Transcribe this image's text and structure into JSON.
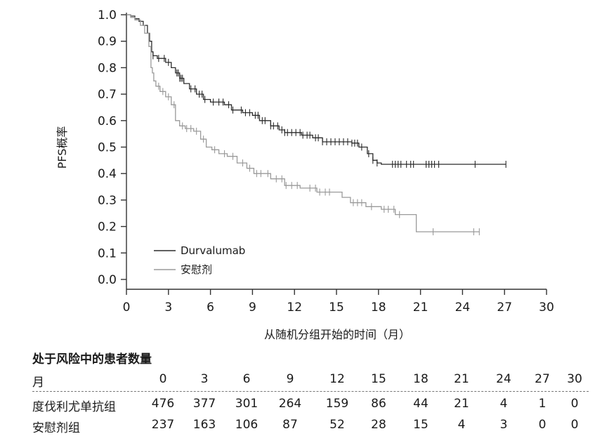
{
  "chart_data": {
    "type": "line",
    "subtype": "kaplan-meier",
    "title": "",
    "xlabel": "从随机分组开始的时间（月）",
    "ylabel": "PFS概率",
    "xlim": [
      0,
      30
    ],
    "ylim": [
      0,
      1.0
    ],
    "x_ticks": [
      "0",
      "3",
      "6",
      "9",
      "12",
      "15",
      "18",
      "21",
      "24",
      "27",
      "30"
    ],
    "y_ticks": [
      "0.0",
      "0.1",
      "0.2",
      "0.3",
      "0.4",
      "0.5",
      "0.6",
      "0.7",
      "0.8",
      "0.9",
      "1.0"
    ],
    "grid": false,
    "legend_position": "bottom-left",
    "series": [
      {
        "name": "Durvalumab",
        "color": "#2b2b2b",
        "x": [
          0,
          0.3,
          0.6,
          0.9,
          1.2,
          1.5,
          1.65,
          1.8,
          1.9,
          2.2,
          2.8,
          3.2,
          3.5,
          3.8,
          4.1,
          4.5,
          5.0,
          5.5,
          6.0,
          7.0,
          7.5,
          8.3,
          9.0,
          9.5,
          10.3,
          10.9,
          11.3,
          12.5,
          13.3,
          14.0,
          16.1,
          16.6,
          17.2,
          17.6,
          17.9,
          18.2,
          27.1
        ],
        "y": [
          1.0,
          0.995,
          0.985,
          0.975,
          0.96,
          0.93,
          0.9,
          0.86,
          0.845,
          0.835,
          0.82,
          0.8,
          0.78,
          0.76,
          0.74,
          0.72,
          0.7,
          0.68,
          0.67,
          0.66,
          0.64,
          0.63,
          0.62,
          0.6,
          0.58,
          0.565,
          0.555,
          0.545,
          0.535,
          0.52,
          0.515,
          0.5,
          0.475,
          0.45,
          0.44,
          0.435,
          0.435
        ],
        "censored_x": [
          1.9,
          2.3,
          2.7,
          3.0,
          3.6,
          3.7,
          3.8,
          3.9,
          4.0,
          4.6,
          4.9,
          5.2,
          5.4,
          5.6,
          6.2,
          6.6,
          6.9,
          7.3,
          7.6,
          8.2,
          8.5,
          8.8,
          9.2,
          9.4,
          9.7,
          9.9,
          10.3,
          10.5,
          10.8,
          11.1,
          11.3,
          11.5,
          11.8,
          12.1,
          12.4,
          12.6,
          12.9,
          13.1,
          13.5,
          13.7,
          14.0,
          14.3,
          14.6,
          14.9,
          15.2,
          15.5,
          15.8,
          16.1,
          16.3,
          16.5,
          16.8,
          17.3,
          17.6,
          17.9,
          19.0,
          19.2,
          19.4,
          19.6,
          20.0,
          20.3,
          20.5,
          21.4,
          21.6,
          21.8,
          22.0,
          22.3,
          24.9,
          27.1
        ]
      },
      {
        "name": "安慰剂",
        "color": "#9a9a9a",
        "x": [
          0,
          0.3,
          0.6,
          1.0,
          1.3,
          1.6,
          1.75,
          1.85,
          1.95,
          2.1,
          2.4,
          2.8,
          3.2,
          3.5,
          3.8,
          4.2,
          4.8,
          5.3,
          5.7,
          6.1,
          6.6,
          7.2,
          7.9,
          8.6,
          9.1,
          10.3,
          11.3,
          12.4,
          13.6,
          15.4,
          16.0,
          17.1,
          18.2,
          19.2,
          20.7,
          25.2
        ],
        "y": [
          1.0,
          0.99,
          0.98,
          0.96,
          0.93,
          0.88,
          0.8,
          0.78,
          0.75,
          0.73,
          0.71,
          0.69,
          0.66,
          0.6,
          0.58,
          0.57,
          0.56,
          0.53,
          0.5,
          0.49,
          0.475,
          0.465,
          0.44,
          0.42,
          0.4,
          0.38,
          0.355,
          0.345,
          0.33,
          0.31,
          0.29,
          0.275,
          0.265,
          0.245,
          0.18,
          0.18
        ],
        "censored_x": [
          2.3,
          2.6,
          3.0,
          3.4,
          4.0,
          4.3,
          4.6,
          5.0,
          5.5,
          6.3,
          7.0,
          7.6,
          8.3,
          8.8,
          9.3,
          9.6,
          10.1,
          10.7,
          11.1,
          11.4,
          11.8,
          12.2,
          13.1,
          13.5,
          13.8,
          14.2,
          14.5,
          16.2,
          16.5,
          16.8,
          17.5,
          18.4,
          18.7,
          19.1,
          19.5,
          21.9,
          24.8,
          25.2
        ]
      }
    ]
  },
  "risk_table": {
    "title": "处于风险中的患者数量",
    "header_label": "月",
    "columns": [
      "0",
      "3",
      "6",
      "9",
      "12",
      "15",
      "18",
      "21",
      "24",
      "27",
      "30"
    ],
    "rows": [
      {
        "label": "度伐利尤单抗组",
        "values": [
          "476",
          "377",
          "301",
          "264",
          "159",
          "86",
          "44",
          "21",
          "4",
          "1",
          "0"
        ]
      },
      {
        "label": "安慰剂组",
        "values": [
          "237",
          "163",
          "106",
          "87",
          "52",
          "28",
          "15",
          "4",
          "3",
          "0",
          "0"
        ]
      }
    ]
  }
}
